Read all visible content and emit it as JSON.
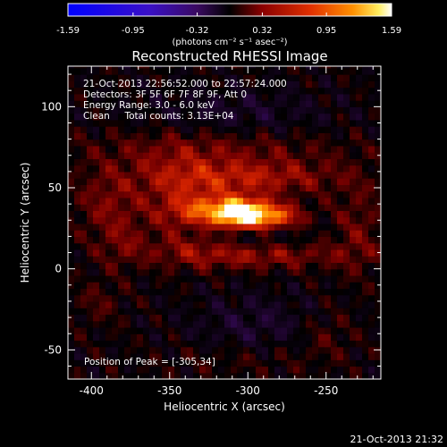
{
  "chart_data": {
    "type": "heatmap",
    "title": "Reconstructed RHESSI Image",
    "xlabel": "Heliocentric X (arcsec)",
    "ylabel": "Heliocentric Y (arcsec)",
    "xlim": [
      -415,
      -215
    ],
    "ylim": [
      -68,
      125
    ],
    "x_ticks": [
      -400,
      -350,
      -300,
      -250
    ],
    "y_ticks": [
      -50,
      0,
      50,
      100
    ],
    "colorbar": {
      "ticks": [
        "-1.59",
        "-0.95",
        "-0.32",
        "0.32",
        "0.95",
        "1.59"
      ],
      "range": [
        -1.59,
        1.59
      ],
      "units_label": "(photons cm⁻² s⁻¹ asec⁻²)"
    },
    "info_lines": [
      "21-Oct-2013 22:56:52.000 to 22:57:24.000",
      "Detectors: 3F 5F 6F 7F 8F 9F, Att 0",
      "Energy Range: 3.0 - 6.0 keV",
      "Clean     Total counts: 3.13E+04"
    ],
    "peak_label": "Position of Peak = [-305,34]",
    "peak": {
      "x": -305,
      "y": 34,
      "value": 1.59
    }
  },
  "timestamp": "21-Oct-2013 21:32"
}
